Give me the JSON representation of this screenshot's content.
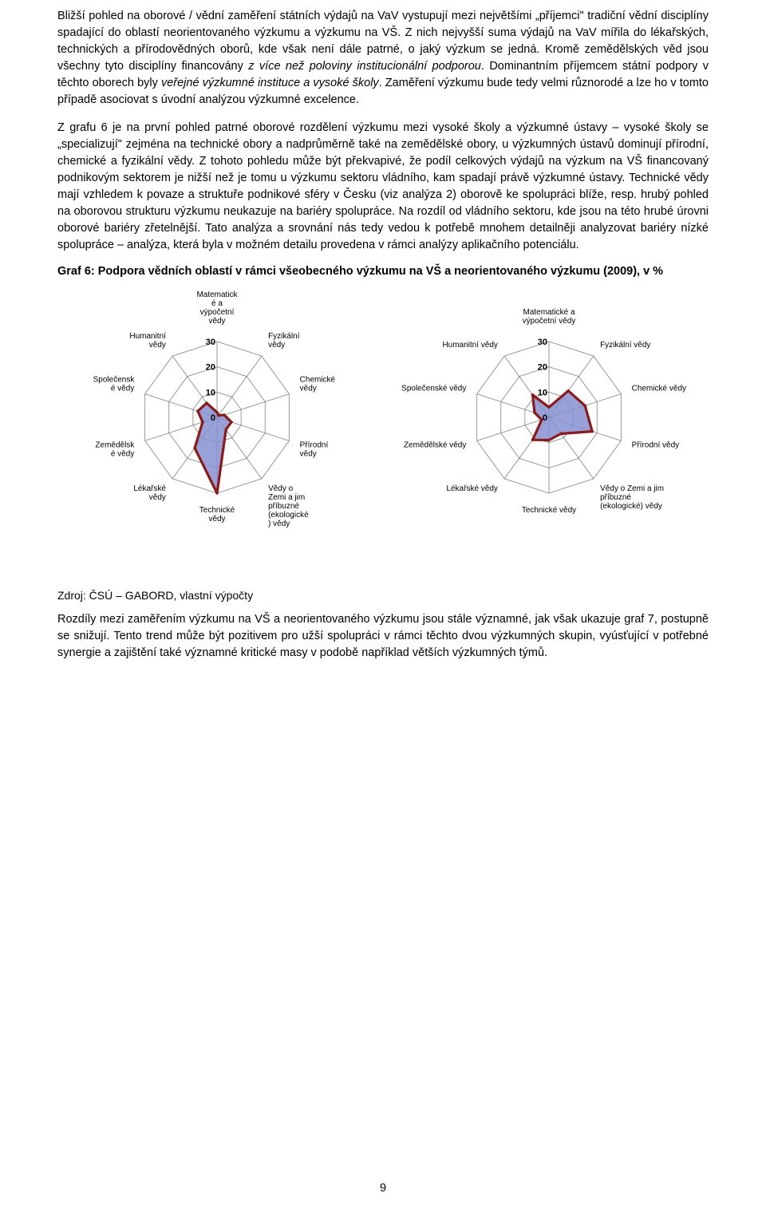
{
  "paragraphs": {
    "p1_a": "Bližší pohled na oborové / vědní zaměření státních výdajů na VaV vystupují mezi největšími „příjemci\" tradiční vědní disciplíny spadající do oblastí neorientovaného výzkumu a výzkumu na VŠ. Z nich nejvyšší suma výdajů na VaV mířila do lékařských, technických a přírodovědných oborů, kde však není dále patrné, o jaký výzkum se jedná. Kromě zemědělských věd jsou všechny tyto disciplíny financovány ",
    "p1_i1": "z více než poloviny institucionální podporou",
    "p1_b": ". Dominantním příjemcem státní podpory v těchto oborech byly ",
    "p1_i2": "veřejné výzkumné instituce a vysoké školy",
    "p1_c": ". Zaměření výzkumu bude tedy velmi různorodé a lze ho v tomto případě asociovat s úvodní analýzou výzkumné excelence.",
    "p2": "Z grafu 6 je na první pohled patrné oborové rozdělení výzkumu mezi vysoké školy a výzkumné ústavy – vysoké školy se „specializují\" zejména na technické obory a nadprůměrně také na zemědělské obory, u výzkumných ústavů dominují přírodní, chemické a fyzikální vědy. Z tohoto pohledu může být překvapivé, že podíl celkových výdajů na výzkum na VŠ financovaný podnikovým sektorem je nižší než je tomu u výzkumu sektoru vládního, kam spadají právě výzkumné ústavy. Technické vědy mají vzhledem k povaze a struktuře podnikové sféry v Česku (viz analýza 2) oborově ke spolupráci blíže, resp. hrubý pohled na oborovou strukturu výzkumu neukazuje na bariéry spolupráce. Na rozdíl od vládního sektoru, kde jsou na této hrubé úrovni oborové bariéry zřetelnější. Tato analýza a srovnání nás tedy vedou k potřebě mnohem detailněji analyzovat bariéry nízké spolupráce – analýza, která byla v možném detailu provedena v rámci analýzy aplikačního potenciálu.",
    "p3": "Rozdíly mezi zaměřením výzkumu na VŠ a neorientovaného výzkumu jsou stále významné, jak však ukazuje graf 7, postupně se snižují. Tento trend může být pozitivem pro užší spolupráci v rámci těchto dvou výzkumných skupin, vyúsťující v potřebné synergie a zajištění také významné kritické masy v podobě například větších výzkumných týmů."
  },
  "chart_title": "Graf 6: Podpora vědních oblastí v rámci všeobecného výzkumu na VŠ a neorientovaného výzkumu (2009), v %",
  "source": "Zdroj: ČSÚ – GABORD, vlastní výpočty",
  "page_number": "9",
  "radar_shared": {
    "categories": [
      "Matematické a výpočetní vědy",
      "Fyzikální vědy",
      "Chemické vědy",
      "Přírodní vědy",
      "Vědy o Zemi a jim příbuzné (ekologické) vědy",
      "Technické vědy",
      "Lékařské vědy",
      "Zemědělské vědy",
      "Společenské vědy",
      "Humanitní vědy"
    ],
    "categories_wrapped_left": [
      [
        "Matematick",
        "é a",
        "výpočetní",
        "vědy"
      ],
      [
        "Fyzikální",
        "vědy"
      ],
      [
        "Chemické",
        "vědy"
      ],
      [
        "Přírodní",
        "vědy"
      ],
      [
        "Vědy o",
        "Zemi a jim",
        "příbuzné",
        "(ekologické",
        ") vědy"
      ],
      [
        "Technické",
        "vědy"
      ],
      [
        "Lékařské",
        "vědy"
      ],
      [
        "Zemědělsk",
        "é vědy"
      ],
      [
        "Společensk",
        "é vědy"
      ],
      [
        "Humanitní",
        "vědy"
      ]
    ],
    "categories_wrapped_right": [
      [
        "Matematické a",
        "výpočetní vědy"
      ],
      [
        "Fyzikální vědy"
      ],
      [
        "Chemické vědy"
      ],
      [
        "Přírodní vědy"
      ],
      [
        "Vědy o Zemi a jim",
        "příbuzné",
        "(ekologické) vědy"
      ],
      [
        "Technické vědy"
      ],
      [
        "Lékařské vědy"
      ],
      [
        "Zemědělské vědy"
      ],
      [
        "Společenské vědy"
      ],
      [
        "Humanitní vědy"
      ]
    ],
    "rings": [
      0,
      10,
      20,
      30
    ],
    "max": 30,
    "ring_color": "#808080",
    "ring_width": 0.8,
    "fill_color": "#8691d1",
    "fill_opacity": 0.85,
    "stroke_color": "#8b1a1a",
    "stroke_width": 3.2,
    "marker_color": "#8b1a1a",
    "marker_size": 3.2,
    "label_fontsize": 10,
    "tick_fontsize": 11,
    "tick_weight": "bold",
    "background": "#ffffff"
  },
  "radar_left": {
    "values": [
      2,
      1,
      3,
      6,
      6,
      30,
      15,
      6,
      8,
      7
    ]
  },
  "radar_right": {
    "values": [
      4,
      13,
      15,
      18,
      8,
      9,
      11,
      3,
      6,
      11
    ]
  }
}
